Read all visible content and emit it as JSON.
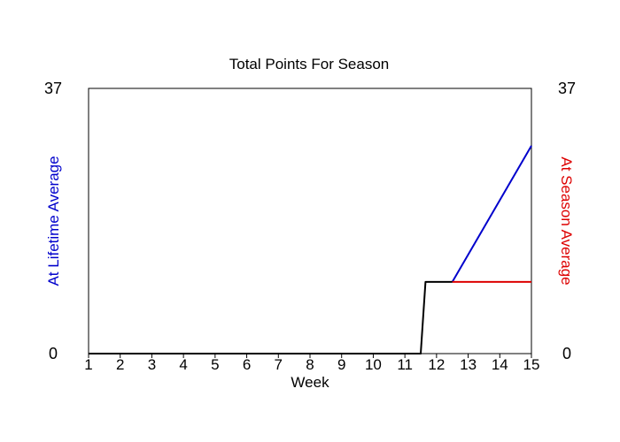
{
  "chart_data": {
    "type": "line",
    "title": "Total Points For Season",
    "xlabel": "Week",
    "ylabel_left": "At Lifetime Average",
    "ylabel_right": "At Season Average",
    "xlim": [
      1,
      15
    ],
    "ylim": [
      0,
      37
    ],
    "x_ticks": [
      1,
      2,
      3,
      4,
      5,
      6,
      7,
      8,
      9,
      10,
      11,
      12,
      13,
      14,
      15
    ],
    "y_ticks_left": [
      0,
      37
    ],
    "y_ticks_right": [
      0,
      37
    ],
    "grid": false,
    "legend": "none",
    "colors": {
      "actual": "#000000",
      "lifetime": "#0000cc",
      "season": "#dd0000",
      "left_label": "#0000cc",
      "right_label": "#dd0000"
    },
    "series": [
      {
        "key": "lifetime",
        "x": [
          12.5,
          15
        ],
        "y": [
          10,
          29
        ]
      },
      {
        "key": "season",
        "x": [
          12.5,
          15
        ],
        "y": [
          10,
          10
        ]
      },
      {
        "key": "actual",
        "x": [
          1,
          11.5,
          11.65,
          12.5
        ],
        "y": [
          0,
          0,
          10,
          10
        ]
      }
    ]
  }
}
